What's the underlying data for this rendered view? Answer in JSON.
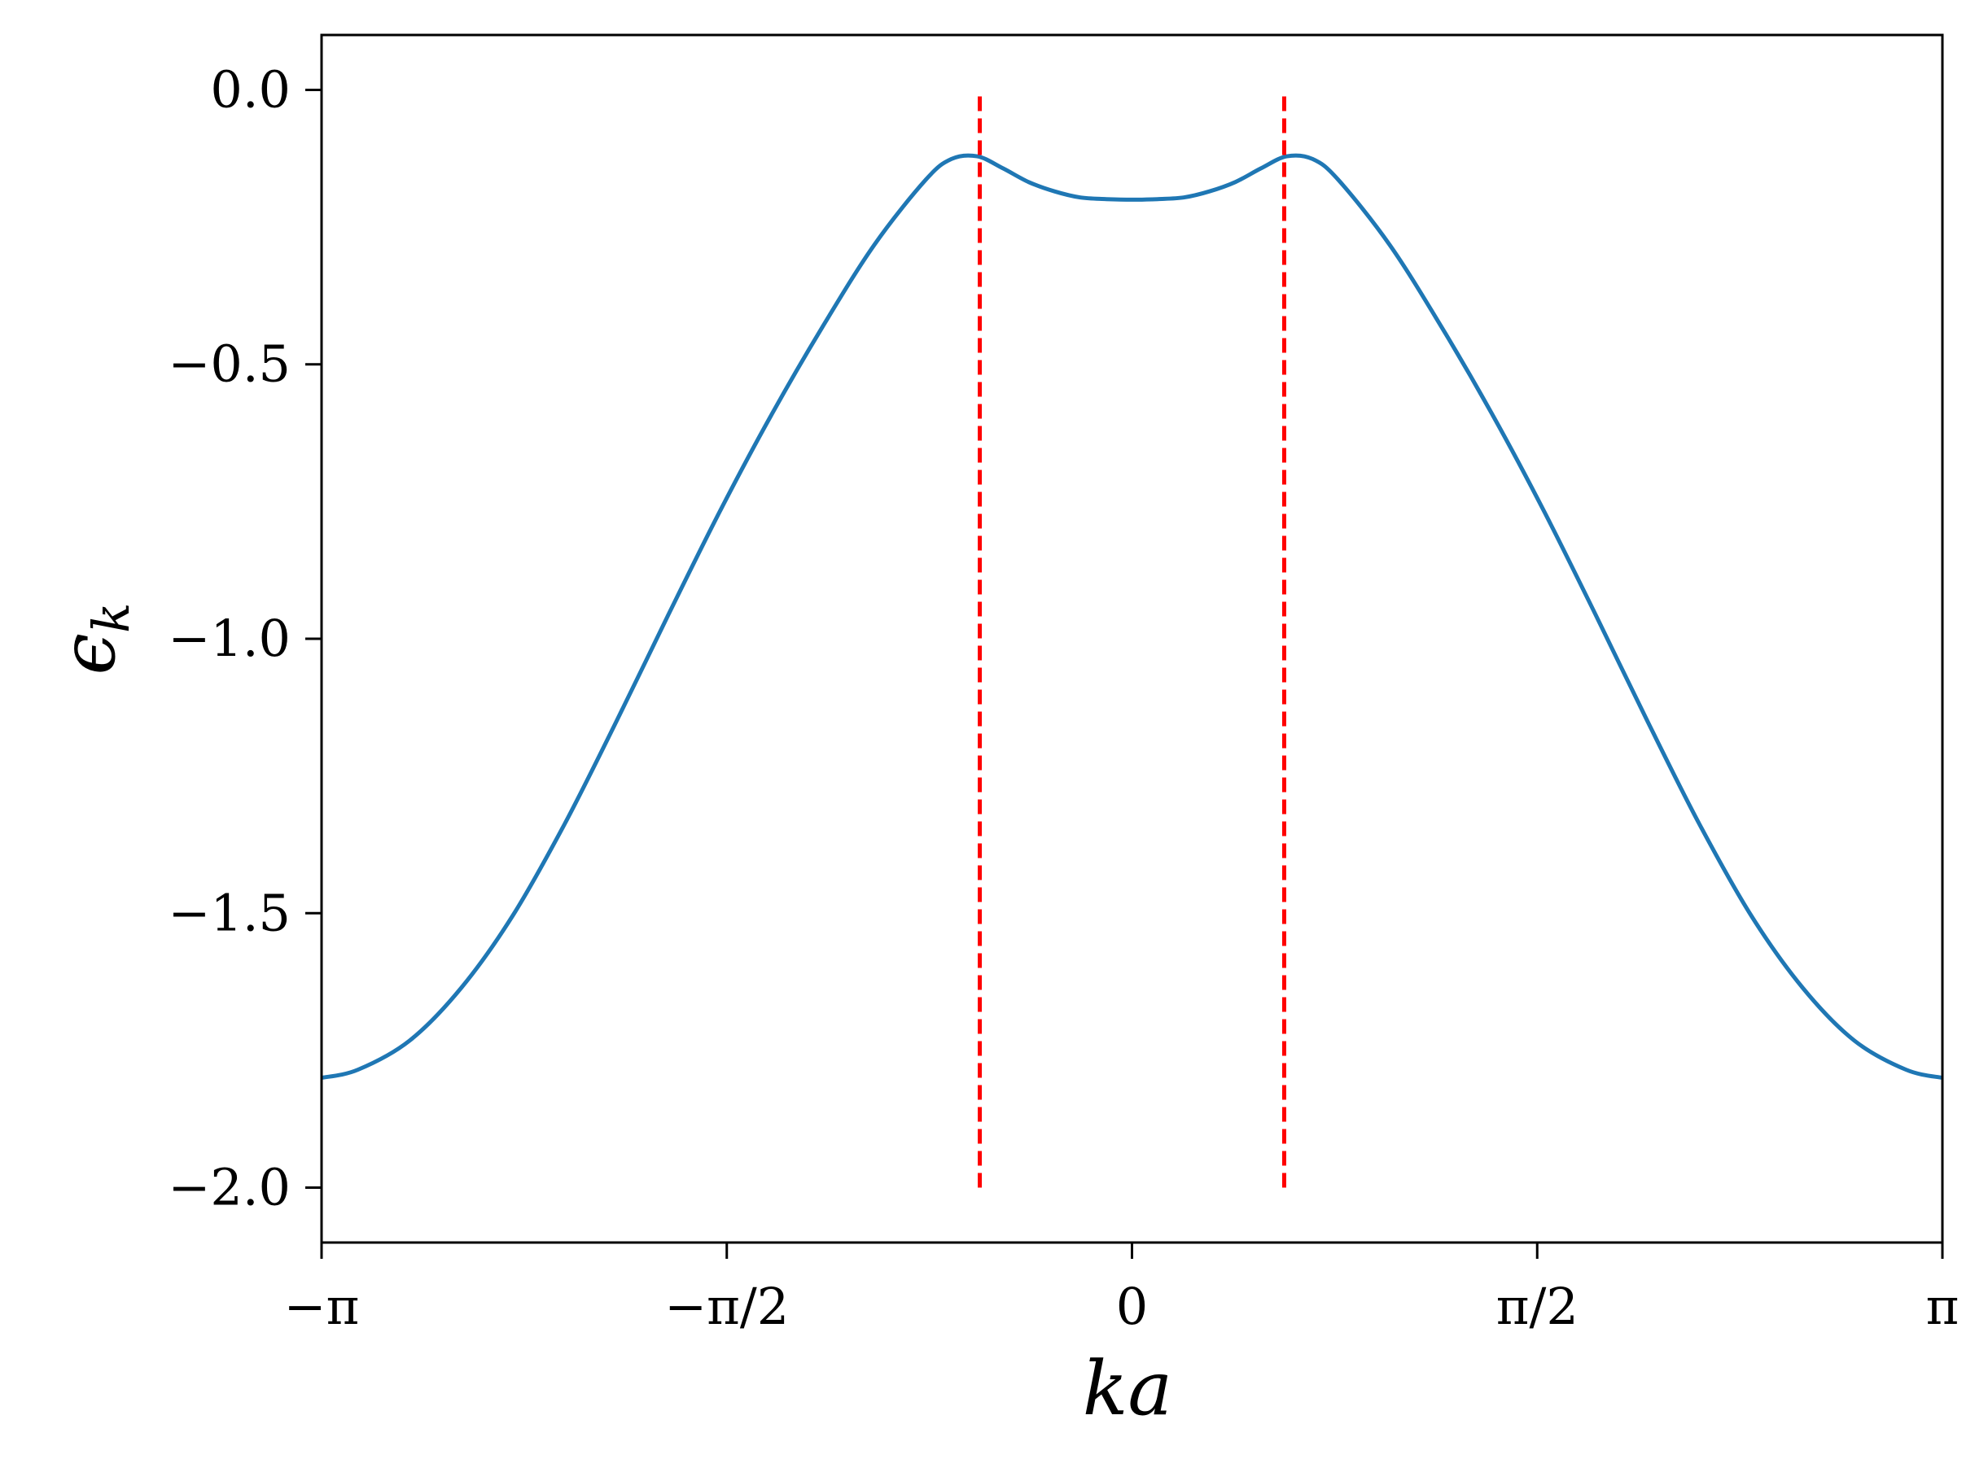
{
  "chart_data": {
    "type": "line",
    "xlabel": "ka",
    "ylabel": "ϵ",
    "ylabel_subscript": "k",
    "xlim": [
      -3.14159,
      3.14159
    ],
    "ylim": [
      -2.1,
      0.1
    ],
    "grid": false,
    "x_ticks": [
      {
        "value": -3.14159,
        "label": "−π"
      },
      {
        "value": -1.5708,
        "label": "−π/2"
      },
      {
        "value": 0,
        "label": "0"
      },
      {
        "value": 1.5708,
        "label": "π/2"
      },
      {
        "value": 3.14159,
        "label": "π"
      }
    ],
    "y_ticks": [
      {
        "value": 0.0,
        "label": "0.0"
      },
      {
        "value": -0.5,
        "label": "−0.5"
      },
      {
        "value": -1.0,
        "label": "−1.0"
      },
      {
        "value": -1.5,
        "label": "−1.5"
      },
      {
        "value": -2.0,
        "label": "−2.0"
      }
    ],
    "series": [
      {
        "kind": "line",
        "color": "#1f77b4",
        "x": [
          -3.142,
          -3.0,
          -2.8,
          -2.6,
          -2.4,
          -2.2,
          -2.0,
          -1.8,
          -1.6,
          -1.4,
          -1.2,
          -1.0,
          -0.8,
          -0.7,
          -0.6,
          -0.5,
          -0.4,
          -0.3,
          -0.2,
          -0.1,
          0.0,
          0.1,
          0.2,
          0.3,
          0.4,
          0.5,
          0.6,
          0.7,
          0.8,
          1.0,
          1.2,
          1.4,
          1.6,
          1.8,
          2.0,
          2.2,
          2.4,
          2.6,
          2.8,
          3.0,
          3.142
        ],
        "y": [
          -1.8,
          -1.785,
          -1.732,
          -1.636,
          -1.504,
          -1.338,
          -1.152,
          -0.959,
          -0.77,
          -0.594,
          -0.432,
          -0.283,
          -0.164,
          -0.126,
          -0.121,
          -0.143,
          -0.168,
          -0.185,
          -0.196,
          -0.199,
          -0.2,
          -0.199,
          -0.196,
          -0.185,
          -0.168,
          -0.143,
          -0.121,
          -0.126,
          -0.164,
          -0.283,
          -0.432,
          -0.594,
          -0.77,
          -0.959,
          -1.152,
          -1.338,
          -1.504,
          -1.636,
          -1.732,
          -1.785,
          -1.8
        ]
      }
    ],
    "vlines": [
      {
        "x": -0.59,
        "ymin": -2.0,
        "ymax": 0.0,
        "color": "#ff0000",
        "style": "dashed"
      },
      {
        "x": 0.59,
        "ymin": -2.0,
        "ymax": 0.0,
        "color": "#ff0000",
        "style": "dashed"
      }
    ]
  }
}
